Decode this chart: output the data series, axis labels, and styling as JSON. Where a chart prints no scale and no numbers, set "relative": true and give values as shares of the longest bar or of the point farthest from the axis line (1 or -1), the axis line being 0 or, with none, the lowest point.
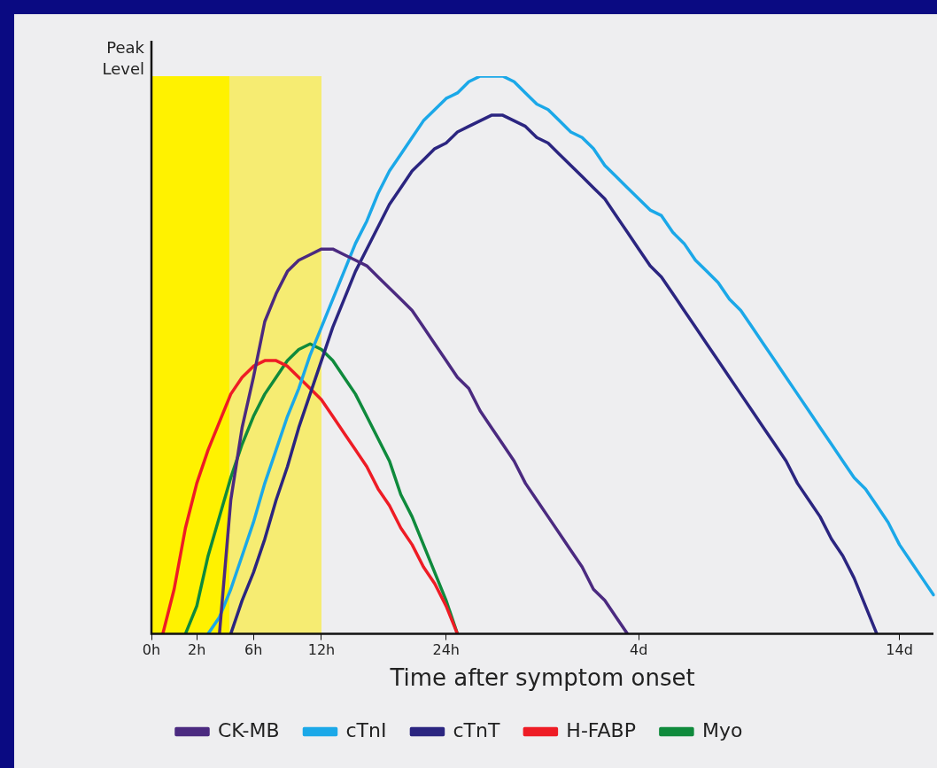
{
  "chart_data": {
    "type": "line",
    "relative": true,
    "xlabel": "Time after symptom onset",
    "ylabel": "Peak Level",
    "categories": [
      "0h",
      null,
      null,
      null,
      "2h",
      null,
      null,
      null,
      null,
      "6h",
      null,
      null,
      null,
      null,
      null,
      "12h",
      null,
      null,
      null,
      null,
      null,
      null,
      null,
      null,
      null,
      null,
      "24h",
      null,
      null,
      null,
      null,
      null,
      null,
      null,
      null,
      null,
      null,
      null,
      null,
      null,
      null,
      null,
      null,
      "4d",
      null,
      null,
      null,
      null,
      null,
      null,
      null,
      null,
      null,
      null,
      null,
      null,
      null,
      null,
      null,
      null,
      null,
      null,
      null,
      null,
      null,
      null,
      "14d",
      null,
      null,
      null
    ],
    "series": [
      {
        "name": "CK-MB",
        "color": "#4b2a80",
        "values": [
          null,
          null,
          null,
          null,
          null,
          null,
          0,
          0.24,
          0.37,
          0.46,
          0.56,
          0.61,
          0.65,
          0.67,
          0.68,
          0.69,
          0.69,
          0.68,
          0.67,
          0.66,
          0.64,
          0.62,
          0.6,
          0.58,
          0.55,
          0.52,
          0.49,
          0.46,
          0.44,
          0.4,
          0.37,
          0.34,
          0.31,
          0.27,
          0.24,
          0.21,
          0.18,
          0.15,
          0.12,
          0.08,
          0.06,
          0.03,
          0,
          null,
          null,
          null,
          null,
          null,
          null,
          null,
          null,
          null,
          null,
          null,
          null,
          null,
          null,
          null,
          null,
          null,
          null,
          null,
          null,
          null,
          null,
          null,
          null,
          null,
          null,
          null
        ]
      },
      {
        "name": "cTnI",
        "color": "#1ba8e8",
        "values": [
          null,
          null,
          null,
          null,
          null,
          0,
          0.03,
          0.08,
          0.14,
          0.2,
          0.27,
          0.33,
          0.39,
          0.44,
          0.5,
          0.55,
          0.6,
          0.65,
          0.7,
          0.74,
          0.79,
          0.83,
          0.86,
          0.89,
          0.92,
          0.94,
          0.96,
          0.97,
          0.99,
          1,
          1,
          1,
          0.99,
          0.97,
          0.95,
          0.94,
          0.92,
          0.9,
          0.89,
          0.87,
          0.84,
          0.82,
          0.8,
          0.78,
          0.76,
          0.75,
          0.72,
          0.7,
          0.67,
          0.65,
          0.63,
          0.6,
          0.58,
          0.55,
          0.52,
          0.49,
          0.46,
          0.43,
          0.4,
          0.37,
          0.34,
          0.31,
          0.28,
          0.26,
          0.23,
          0.2,
          0.16,
          0.13,
          0.1,
          0.07
        ]
      },
      {
        "name": "cTnT",
        "color": "#2b2580",
        "values": [
          null,
          null,
          null,
          null,
          null,
          null,
          null,
          0,
          0.06,
          0.11,
          0.17,
          0.24,
          0.3,
          0.37,
          0.43,
          0.49,
          0.55,
          0.6,
          0.65,
          0.69,
          0.73,
          0.77,
          0.8,
          0.83,
          0.85,
          0.87,
          0.88,
          0.9,
          0.91,
          0.92,
          0.93,
          0.93,
          0.92,
          0.91,
          0.89,
          0.88,
          0.86,
          0.84,
          0.82,
          0.8,
          0.78,
          0.75,
          0.72,
          0.69,
          0.66,
          0.64,
          0.61,
          0.58,
          0.55,
          0.52,
          0.49,
          0.46,
          0.43,
          0.4,
          0.37,
          0.34,
          0.31,
          0.27,
          0.24,
          0.21,
          0.17,
          0.14,
          0.1,
          0.05,
          0,
          null,
          null,
          null,
          null,
          null
        ]
      },
      {
        "name": "H-FABP",
        "color": "#ee1c25",
        "values": [
          null,
          0,
          0.08,
          0.19,
          0.27,
          0.33,
          0.38,
          0.43,
          0.46,
          0.48,
          0.49,
          0.49,
          0.48,
          0.46,
          0.44,
          0.42,
          0.39,
          0.36,
          0.33,
          0.3,
          0.26,
          0.23,
          0.19,
          0.16,
          0.12,
          0.09,
          0.05,
          0,
          null,
          null,
          null,
          null,
          null,
          null,
          null,
          null,
          null,
          null,
          null,
          null,
          null,
          null,
          null,
          null,
          null,
          null,
          null,
          null,
          null,
          null,
          null,
          null,
          null,
          null,
          null,
          null,
          null,
          null,
          null,
          null,
          null,
          null,
          null,
          null,
          null,
          null,
          null,
          null,
          null,
          null
        ]
      },
      {
        "name": "Myo",
        "color": "#0f8a3c",
        "values": [
          null,
          null,
          null,
          0,
          0.05,
          0.14,
          0.21,
          0.28,
          0.34,
          0.39,
          0.43,
          0.46,
          0.49,
          0.51,
          0.52,
          0.51,
          0.49,
          0.46,
          0.43,
          0.39,
          0.35,
          0.31,
          0.25,
          0.21,
          0.16,
          0.11,
          0.06,
          0,
          null,
          null,
          null,
          null,
          null,
          null,
          null,
          null,
          null,
          null,
          null,
          null,
          null,
          null,
          null,
          null,
          null,
          null,
          null,
          null,
          null,
          null,
          null,
          null,
          null,
          null,
          null,
          null,
          null,
          null,
          null,
          null,
          null,
          null,
          null,
          null,
          null,
          null,
          null,
          null,
          null,
          null
        ]
      }
    ],
    "legend": "bottom",
    "marker": "none",
    "line_style": "solid"
  }
}
